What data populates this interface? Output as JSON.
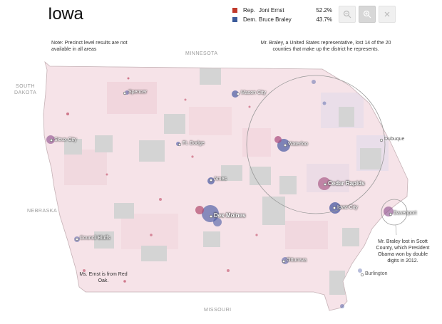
{
  "title": "Iowa",
  "legend": [
    {
      "party": "Rep.",
      "candidate": "Joni Ernst",
      "pct": "52.2%",
      "color": "#c0392b"
    },
    {
      "party": "Dem.",
      "candidate": "Bruce Braley",
      "pct": "43.7%",
      "color": "#3b5b9a"
    }
  ],
  "toolbar": {
    "zoom_out": "zoom-out-icon",
    "zoom_in": "zoom-in-icon",
    "close": "close-icon"
  },
  "notes": {
    "precinct": "Note: Precinct level results are not available in all areas",
    "braley": "Mr. Braley, a United States representative, lost 14 of the 20 counties that make up the district he represents.",
    "scott": "Mr. Braley lost in Scott County, which President Obama won by double digits in 2012.",
    "ernst": "Ms. Ernst is from Red Oak."
  },
  "states": {
    "minnesota": "MINNESOTA",
    "south_dakota_1": "SOUTH",
    "south_dakota_2": "DAKOTA",
    "nebraska": "NEBRASKA",
    "missouri": "MISSOURI"
  },
  "cities": {
    "spencer": "Spencer",
    "mason_city": "Mason City",
    "sioux_city": "Sioux City",
    "fort_dodge": "Ft. Dodge",
    "waterloo": "Waterloo",
    "dubuque": "Dubuque",
    "ames": "Ames",
    "cedar_rapids": "Cedar Rapids",
    "iowa_city": "Iowa City",
    "davenport": "Davenport",
    "des_moines": "Des Moines",
    "council_bluffs": "Council Bluffs",
    "ottumwa": "Ottumwa",
    "burlington": "Burlington"
  },
  "colors": {
    "republican": "#c0392b",
    "democrat": "#3b5b9a",
    "map_base": "#f7e6ea",
    "no_data": "#d3d3d3"
  }
}
